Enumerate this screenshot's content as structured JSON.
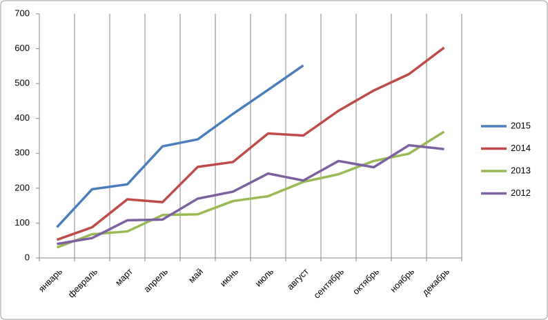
{
  "chart_data": {
    "type": "line",
    "categories": [
      "январь",
      "февраль",
      "март",
      "апрель",
      "май",
      "июнь",
      "июль",
      "август",
      "сентябрь",
      "октябрь",
      "ноябрь",
      "декабрь"
    ],
    "series": [
      {
        "name": "2015",
        "color": "#4a7ebb",
        "values": [
          88,
          197,
          211,
          320,
          340,
          413,
          482,
          552,
          null,
          null,
          null,
          null
        ]
      },
      {
        "name": "2014",
        "color": "#be4b48",
        "values": [
          52,
          88,
          168,
          160,
          261,
          275,
          357,
          351,
          422,
          480,
          527,
          603
        ]
      },
      {
        "name": "2013",
        "color": "#98b954",
        "values": [
          30,
          68,
          76,
          123,
          125,
          163,
          177,
          218,
          240,
          278,
          299,
          362
        ]
      },
      {
        "name": "2012",
        "color": "#7d60a0",
        "values": [
          40,
          57,
          108,
          110,
          170,
          190,
          242,
          222,
          278,
          260,
          323,
          312
        ]
      }
    ],
    "ylim": [
      0,
      700
    ],
    "yticks": [
      0,
      100,
      200,
      300,
      400,
      500,
      600,
      700
    ],
    "grid": true,
    "legend": "right"
  }
}
